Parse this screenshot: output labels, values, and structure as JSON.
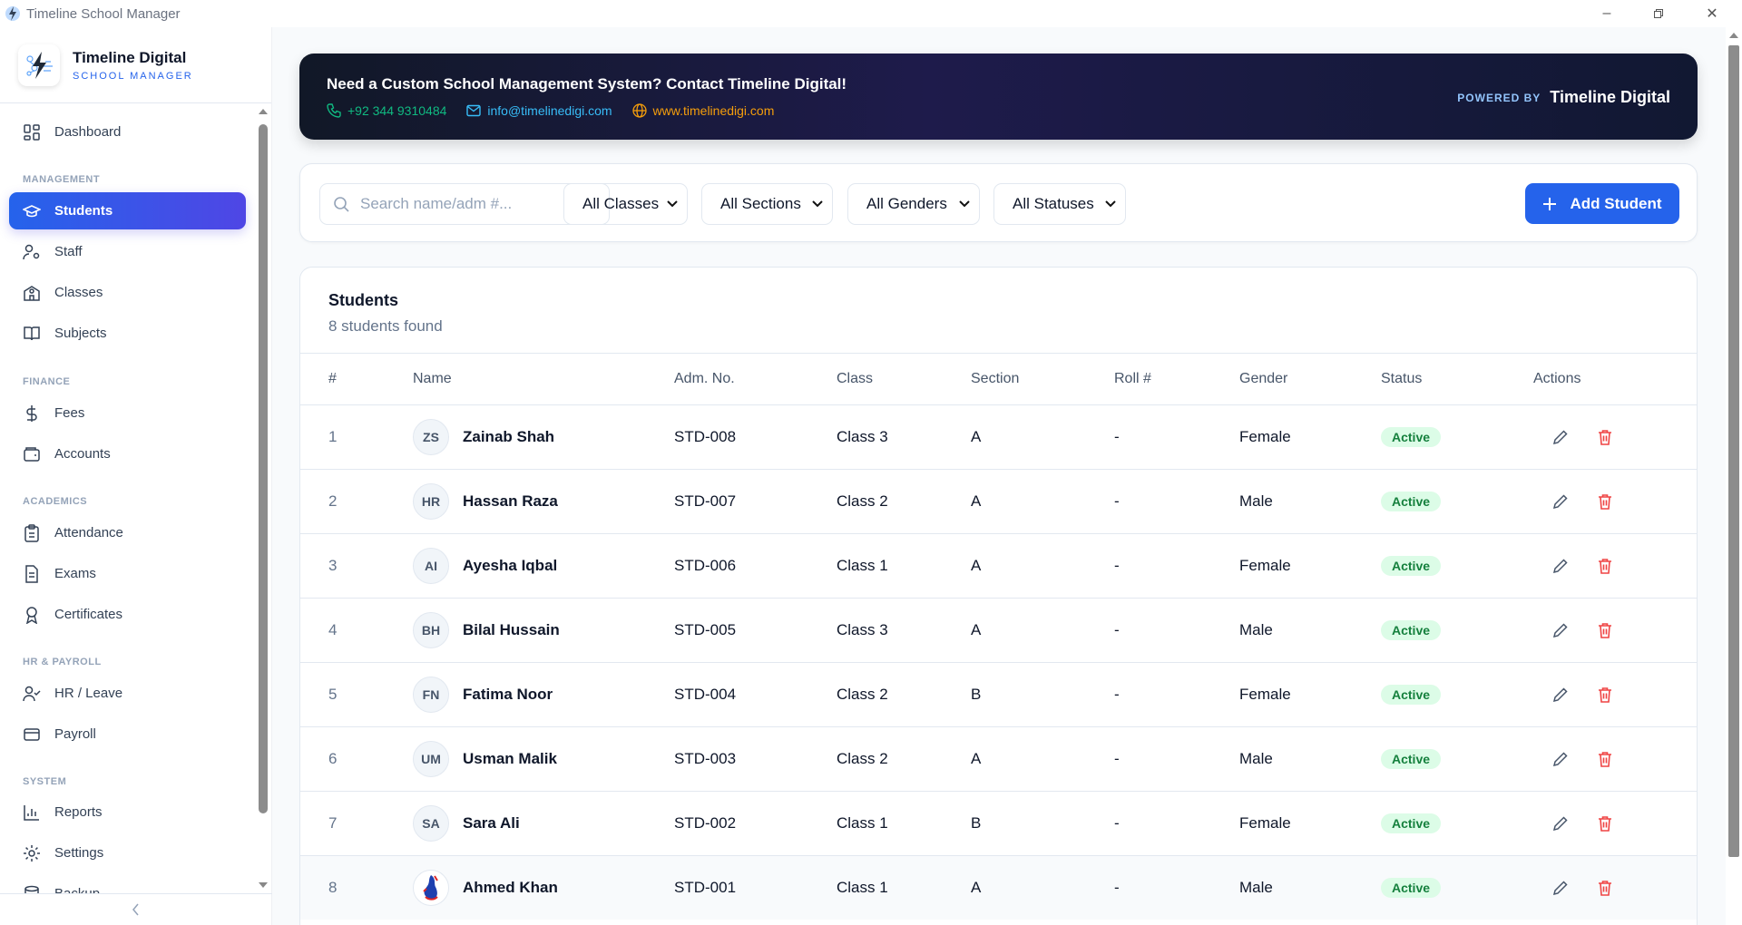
{
  "window": {
    "title": "Timeline School Manager",
    "controls": [
      "minimize",
      "restore",
      "close"
    ]
  },
  "brand": {
    "name": "Timeline Digital",
    "subtitle": "SCHOOL MANAGER"
  },
  "sidebar": {
    "dashboard": {
      "label": "Dashboard",
      "icon": "dashboard-icon"
    },
    "sections": [
      {
        "title": "MANAGEMENT",
        "items": [
          {
            "label": "Students",
            "icon": "graduation-cap-icon",
            "active": true
          },
          {
            "label": "Staff",
            "icon": "user-gear-icon"
          },
          {
            "label": "Classes",
            "icon": "school-icon"
          },
          {
            "label": "Subjects",
            "icon": "book-icon"
          }
        ]
      },
      {
        "title": "FINANCE",
        "items": [
          {
            "label": "Fees",
            "icon": "dollar-icon"
          },
          {
            "label": "Accounts",
            "icon": "wallet-icon"
          }
        ]
      },
      {
        "title": "ACADEMICS",
        "items": [
          {
            "label": "Attendance",
            "icon": "clipboard-icon"
          },
          {
            "label": "Exams",
            "icon": "document-icon"
          },
          {
            "label": "Certificates",
            "icon": "award-icon"
          }
        ]
      },
      {
        "title": "HR & PAYROLL",
        "items": [
          {
            "label": "HR / Leave",
            "icon": "user-check-icon"
          },
          {
            "label": "Payroll",
            "icon": "credit-card-icon"
          }
        ]
      },
      {
        "title": "SYSTEM",
        "items": [
          {
            "label": "Reports",
            "icon": "bar-chart-icon"
          },
          {
            "label": "Settings",
            "icon": "gear-icon"
          },
          {
            "label": "Backup",
            "icon": "database-icon"
          }
        ]
      }
    ],
    "collapse_icon": "chevron-left-icon"
  },
  "banner": {
    "headline": "Need a Custom School Management System? Contact Timeline Digital!",
    "phone": "+92 344 9310484",
    "email": "info@timelinedigi.com",
    "website": "www.timelinedigi.com",
    "powered_by": "POWERED BY",
    "powered_name": "Timeline Digital",
    "colors": {
      "phone": "#10b981",
      "email": "#38bdf8",
      "website": "#f59e0b"
    }
  },
  "filters": {
    "search_placeholder": "Search name/adm #...",
    "class": "All Classes",
    "section": "All Sections",
    "gender": "All Genders",
    "status": "All Statuses",
    "add_label": "Add Student"
  },
  "table": {
    "title": "Students",
    "subtitle": "8 students found",
    "columns": [
      "#",
      "Name",
      "Adm. No.",
      "Class",
      "Section",
      "Roll #",
      "Gender",
      "Status",
      "Actions"
    ],
    "rows": [
      {
        "n": "1",
        "initials": "ZS",
        "name": "Zainab Shah",
        "adm": "STD-008",
        "class": "Class 3",
        "section": "A",
        "roll": "-",
        "gender": "Female",
        "status": "Active"
      },
      {
        "n": "2",
        "initials": "HR",
        "name": "Hassan Raza",
        "adm": "STD-007",
        "class": "Class 2",
        "section": "A",
        "roll": "-",
        "gender": "Male",
        "status": "Active"
      },
      {
        "n": "3",
        "initials": "AI",
        "name": "Ayesha Iqbal",
        "adm": "STD-006",
        "class": "Class 1",
        "section": "A",
        "roll": "-",
        "gender": "Female",
        "status": "Active"
      },
      {
        "n": "4",
        "initials": "BH",
        "name": "Bilal Hussain",
        "adm": "STD-005",
        "class": "Class 3",
        "section": "A",
        "roll": "-",
        "gender": "Male",
        "status": "Active"
      },
      {
        "n": "5",
        "initials": "FN",
        "name": "Fatima Noor",
        "adm": "STD-004",
        "class": "Class 2",
        "section": "B",
        "roll": "-",
        "gender": "Female",
        "status": "Active"
      },
      {
        "n": "6",
        "initials": "UM",
        "name": "Usman Malik",
        "adm": "STD-003",
        "class": "Class 2",
        "section": "A",
        "roll": "-",
        "gender": "Male",
        "status": "Active"
      },
      {
        "n": "7",
        "initials": "SA",
        "name": "Sara Ali",
        "adm": "STD-002",
        "class": "Class 1",
        "section": "B",
        "roll": "-",
        "gender": "Female",
        "status": "Active"
      },
      {
        "n": "8",
        "initials": "",
        "name": "Ahmed Khan",
        "adm": "STD-001",
        "class": "Class 1",
        "section": "A",
        "roll": "-",
        "gender": "Male",
        "status": "Active",
        "photo": true
      }
    ]
  },
  "colors": {
    "accent": "#2563eb",
    "active_bg": "#dcfce7",
    "active_text": "#15803d",
    "delete": "#ef4444"
  }
}
